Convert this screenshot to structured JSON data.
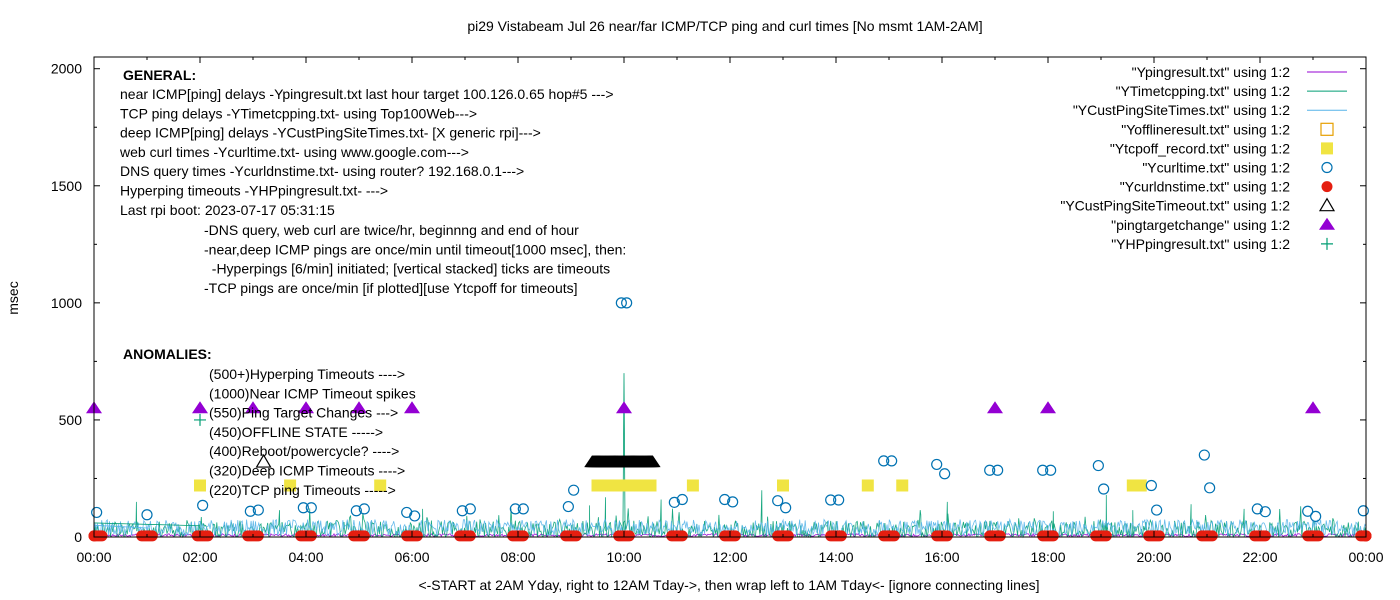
{
  "chart_data": {
    "type": "scatter",
    "title": "pi29 Vistabeam Jul 26  near/far ICMP/TCP ping and curl times [No msmt 1AM-2AM]",
    "xlabel": "<-START at 2AM Yday, right to 12AM Tday->, then wrap left to 1AM Tday<- [ignore connecting lines]",
    "ylabel": "msec",
    "xlim": [
      0,
      24
    ],
    "ylim": [
      0,
      2050
    ],
    "x_ticks": [
      {
        "v": 0,
        "label": "00:00"
      },
      {
        "v": 2,
        "label": "02:00"
      },
      {
        "v": 4,
        "label": "04:00"
      },
      {
        "v": 6,
        "label": "06:00"
      },
      {
        "v": 8,
        "label": "08:00"
      },
      {
        "v": 10,
        "label": "10:00"
      },
      {
        "v": 12,
        "label": "12:00"
      },
      {
        "v": 14,
        "label": "14:00"
      },
      {
        "v": 16,
        "label": "16:00"
      },
      {
        "v": 18,
        "label": "18:00"
      },
      {
        "v": 20,
        "label": "20:00"
      },
      {
        "v": 22,
        "label": "22:00"
      },
      {
        "v": 24,
        "label": "00:00"
      }
    ],
    "y_ticks": [
      {
        "v": 0,
        "label": "0"
      },
      {
        "v": 500,
        "label": "500"
      },
      {
        "v": 1000,
        "label": "1000"
      },
      {
        "v": 1500,
        "label": "1500"
      },
      {
        "v": 2000,
        "label": "2000"
      }
    ],
    "legend_position": "top-right",
    "series": [
      {
        "name": "\"Ypingresult.txt\" using 1:2",
        "kind": "line",
        "color": "#9400d3",
        "baseline": 8,
        "noise": 6
      },
      {
        "name": "\"YTimetcpping.txt\" using 1:2",
        "kind": "line",
        "color": "#009e73",
        "baseline": 25,
        "noise": 45,
        "spikes": [
          [
            0.8,
            150
          ],
          [
            3.5,
            115
          ],
          [
            6.2,
            120
          ],
          [
            9.35,
            135
          ],
          [
            9.65,
            170
          ],
          [
            10.7,
            160
          ],
          [
            12.6,
            200
          ],
          [
            15.6,
            95
          ],
          [
            16.1,
            150
          ],
          [
            18.1,
            110
          ],
          [
            19.1,
            180
          ],
          [
            19.6,
            115
          ],
          [
            20.7,
            140
          ],
          [
            21.7,
            120
          ]
        ]
      },
      {
        "name": "\"YCustPingSiteTimes.txt\" using 1:2",
        "kind": "line",
        "color": "#56b4e9",
        "baseline": 40,
        "noise": 35
      },
      {
        "name": "\"Yofflineresult.txt\" using 1:2",
        "kind": "marker",
        "shape": "open-square",
        "color": "#e69f00",
        "points": []
      },
      {
        "name": "\"Ytcpoff_record.txt\" using 1:2",
        "kind": "marker",
        "shape": "filled-square",
        "color": "#f0e442",
        "points": [
          [
            2.0,
            220
          ],
          [
            3.7,
            220
          ],
          [
            5.4,
            220
          ],
          [
            9.5,
            220
          ],
          [
            9.7,
            220
          ],
          [
            9.9,
            220
          ],
          [
            10.1,
            220
          ],
          [
            10.3,
            220
          ],
          [
            10.5,
            220
          ],
          [
            11.3,
            220
          ],
          [
            13.0,
            220
          ],
          [
            14.6,
            220
          ],
          [
            15.25,
            220
          ],
          [
            19.6,
            220
          ],
          [
            19.75,
            220
          ]
        ]
      },
      {
        "name": "\"Ycurltime.txt\" using 1:2",
        "kind": "marker",
        "shape": "open-circle",
        "color": "#0072b2",
        "points": [
          [
            0.05,
            105
          ],
          [
            1.0,
            95
          ],
          [
            2.05,
            135
          ],
          [
            2.95,
            110
          ],
          [
            3.1,
            115
          ],
          [
            3.95,
            125
          ],
          [
            4.1,
            125
          ],
          [
            4.95,
            112
          ],
          [
            5.1,
            120
          ],
          [
            5.9,
            105
          ],
          [
            6.05,
            90
          ],
          [
            6.95,
            112
          ],
          [
            7.1,
            120
          ],
          [
            7.95,
            120
          ],
          [
            8.1,
            120
          ],
          [
            8.95,
            130
          ],
          [
            9.05,
            200
          ],
          [
            9.95,
            1000
          ],
          [
            10.05,
            1000
          ],
          [
            10.95,
            148
          ],
          [
            11.1,
            160
          ],
          [
            11.9,
            160
          ],
          [
            12.05,
            150
          ],
          [
            12.9,
            155
          ],
          [
            13.05,
            125
          ],
          [
            13.9,
            158
          ],
          [
            14.05,
            158
          ],
          [
            14.9,
            325
          ],
          [
            15.05,
            325
          ],
          [
            15.9,
            310
          ],
          [
            16.05,
            270
          ],
          [
            16.9,
            285
          ],
          [
            17.05,
            285
          ],
          [
            17.9,
            285
          ],
          [
            18.05,
            285
          ],
          [
            18.95,
            305
          ],
          [
            19.05,
            205
          ],
          [
            19.95,
            220
          ],
          [
            20.05,
            115
          ],
          [
            20.95,
            350
          ],
          [
            21.05,
            210
          ],
          [
            21.95,
            120
          ],
          [
            22.1,
            108
          ],
          [
            22.9,
            110
          ],
          [
            23.05,
            88
          ],
          [
            23.95,
            112
          ]
        ]
      },
      {
        "name": "\"Ycurldnstime.txt\" using 1:2",
        "kind": "marker",
        "shape": "filled-circle",
        "color": "#e51e10",
        "clusters": [
          0.05,
          1.0,
          2.05,
          3.0,
          4.0,
          5.0,
          6.0,
          7.0,
          8.0,
          9.0,
          10.0,
          11.0,
          12.0,
          13.0,
          14.0,
          15.0,
          16.0,
          17.0,
          18.0,
          19.0,
          20.0,
          21.0,
          22.0,
          23.0,
          24.0
        ],
        "value": 5
      },
      {
        "name": "\"YCustPingSiteTimeout.txt\" using 1:2",
        "kind": "marker",
        "shape": "open-triangle",
        "color": "#000000",
        "points": [
          [
            3.2,
            320
          ]
        ],
        "band": [
          9.4,
          10.55,
          320
        ]
      },
      {
        "name": "\"pingtargetchange\" using 1:2",
        "kind": "marker",
        "shape": "filled-triangle",
        "color": "#9400d3",
        "points": [
          [
            0.0,
            550
          ],
          [
            2.0,
            550
          ],
          [
            3.0,
            550
          ],
          [
            4.0,
            550
          ],
          [
            5.0,
            550
          ],
          [
            6.0,
            550
          ],
          [
            10.0,
            550
          ],
          [
            17.0,
            550
          ],
          [
            18.0,
            550
          ],
          [
            23.0,
            550
          ]
        ]
      },
      {
        "name": "\"YHPpingresult.txt\" using 1:2",
        "kind": "marker",
        "shape": "plus",
        "color": "#009e73",
        "points": [
          [
            2.0,
            500
          ]
        ]
      }
    ],
    "annotations": {
      "general_heading": "GENERAL:",
      "general_lines": [
        "near ICMP[ping] delays -Ypingresult.txt last hour target 100.126.0.65 hop#5 --->",
        "TCP ping delays -YTimetcpping.txt- using Top100Web--->",
        "deep ICMP[ping] delays -YCustPingSiteTimes.txt- [X generic rpi]--->",
        "web curl times -Ycurltime.txt- using www.google.com--->",
        "DNS query times -Ycurldnstime.txt- using router? 192.168.0.1--->",
        "Hyperping timeouts -YHPpingresult.txt- --->",
        "Last rpi boot: 2023-07-17 05:31:15"
      ],
      "notes": [
        "-DNS query, web curl are twice/hr, beginnng and end of hour",
        "-near,deep ICMP pings are once/min until timeout[1000 msec], then:",
        "  -Hyperpings [6/min] initiated; [vertical stacked] ticks are timeouts",
        "-TCP pings are once/min [if plotted][use Ytcpoff for timeouts]"
      ],
      "anomalies_heading": "ANOMALIES:",
      "anomalies": [
        "(500+)Hyperping Timeouts ---->",
        "(1000)Near ICMP Timeout spikes",
        "(550)Ping Target Changes --->",
        "(450)OFFLINE STATE ----->",
        "(400)Reboot/powercycle? ---->",
        "(320)Deep ICMP Timeouts ---->",
        "(220)TCP ping Timeouts ----->"
      ]
    }
  }
}
